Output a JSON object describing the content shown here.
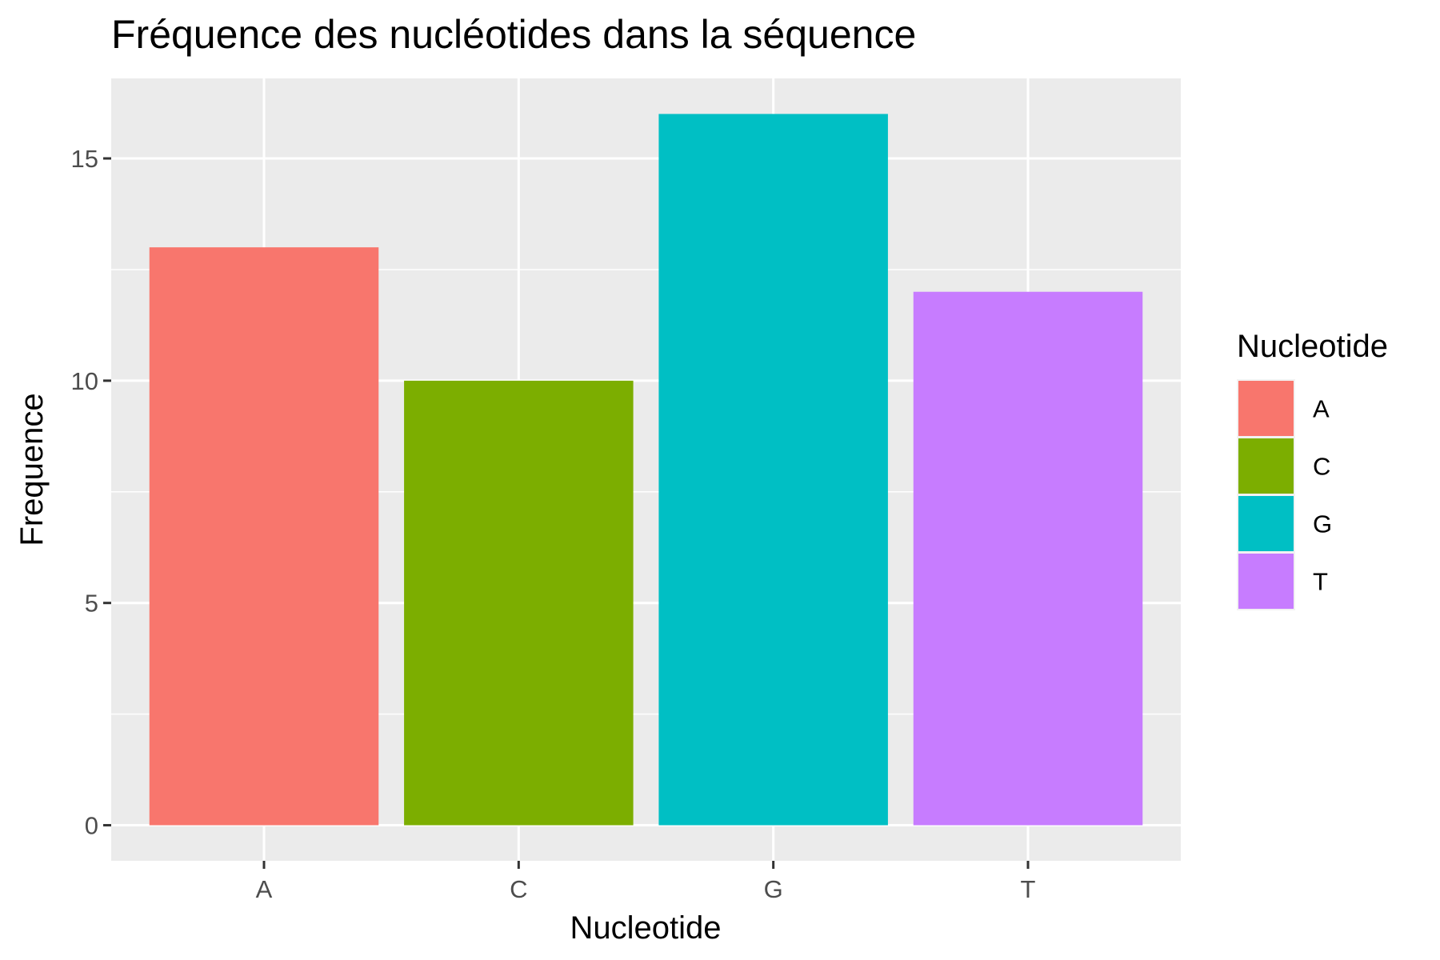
{
  "chart_data": {
    "type": "bar",
    "title": "Fréquence des nucléotides dans la séquence",
    "xlabel": "Nucleotide",
    "ylabel": "Frequence",
    "categories": [
      "A",
      "C",
      "G",
      "T"
    ],
    "values": [
      13,
      10,
      16,
      12
    ],
    "colors": [
      "#F8766D",
      "#7CAE00",
      "#00BFC4",
      "#C77CFF"
    ],
    "ylim": [
      -0.8,
      16.8
    ],
    "yticks": [
      0,
      5,
      10,
      15
    ],
    "ytick_labels": [
      "0",
      "5",
      "10",
      "15"
    ],
    "grid": true,
    "legend": {
      "title": "Nucleotide",
      "placement": "right",
      "entries": [
        "A",
        "C",
        "G",
        "T"
      ]
    },
    "panel_background": "#EBEBEB",
    "grid_color": "#FFFFFF"
  }
}
